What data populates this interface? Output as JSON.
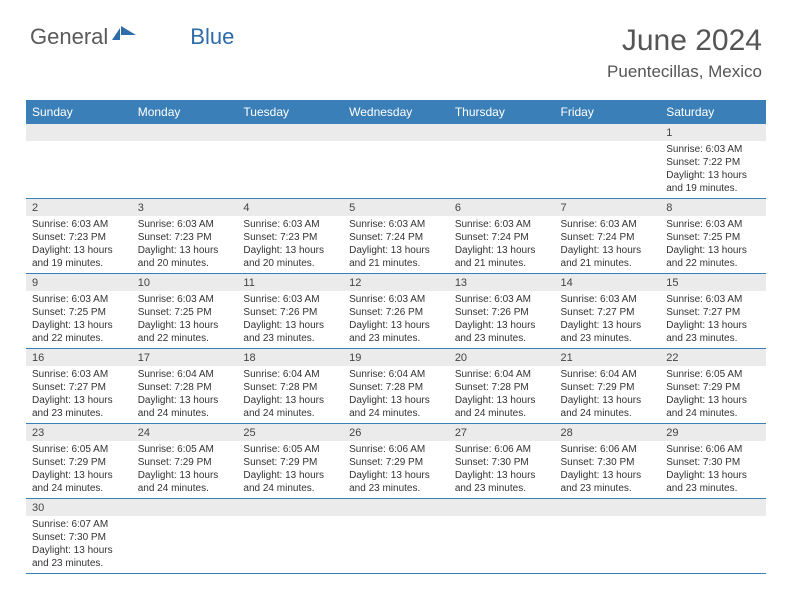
{
  "logo": {
    "part1": "General",
    "part2": "Blue"
  },
  "title": "June 2024",
  "location": "Puentecillas, Mexico",
  "colors": {
    "header_bg": "#3b7fb8",
    "header_text": "#ffffff",
    "daynum_bg": "#ebebeb",
    "border": "#3b7fb8",
    "title_color": "#555555",
    "logo_gray": "#5a5a5a",
    "logo_blue": "#2d6ca8"
  },
  "typography": {
    "title_fontsize": 30,
    "location_fontsize": 17,
    "header_fontsize": 12,
    "daynum_fontsize": 11,
    "content_fontsize": 10
  },
  "weekdays": [
    "Sunday",
    "Monday",
    "Tuesday",
    "Wednesday",
    "Thursday",
    "Friday",
    "Saturday"
  ],
  "first_weekday": 6,
  "days": [
    {
      "n": 1,
      "sunrise": "6:03 AM",
      "sunset": "7:22 PM",
      "daylight": "13 hours and 19 minutes."
    },
    {
      "n": 2,
      "sunrise": "6:03 AM",
      "sunset": "7:23 PM",
      "daylight": "13 hours and 19 minutes."
    },
    {
      "n": 3,
      "sunrise": "6:03 AM",
      "sunset": "7:23 PM",
      "daylight": "13 hours and 20 minutes."
    },
    {
      "n": 4,
      "sunrise": "6:03 AM",
      "sunset": "7:23 PM",
      "daylight": "13 hours and 20 minutes."
    },
    {
      "n": 5,
      "sunrise": "6:03 AM",
      "sunset": "7:24 PM",
      "daylight": "13 hours and 21 minutes."
    },
    {
      "n": 6,
      "sunrise": "6:03 AM",
      "sunset": "7:24 PM",
      "daylight": "13 hours and 21 minutes."
    },
    {
      "n": 7,
      "sunrise": "6:03 AM",
      "sunset": "7:24 PM",
      "daylight": "13 hours and 21 minutes."
    },
    {
      "n": 8,
      "sunrise": "6:03 AM",
      "sunset": "7:25 PM",
      "daylight": "13 hours and 22 minutes."
    },
    {
      "n": 9,
      "sunrise": "6:03 AM",
      "sunset": "7:25 PM",
      "daylight": "13 hours and 22 minutes."
    },
    {
      "n": 10,
      "sunrise": "6:03 AM",
      "sunset": "7:25 PM",
      "daylight": "13 hours and 22 minutes."
    },
    {
      "n": 11,
      "sunrise": "6:03 AM",
      "sunset": "7:26 PM",
      "daylight": "13 hours and 23 minutes."
    },
    {
      "n": 12,
      "sunrise": "6:03 AM",
      "sunset": "7:26 PM",
      "daylight": "13 hours and 23 minutes."
    },
    {
      "n": 13,
      "sunrise": "6:03 AM",
      "sunset": "7:26 PM",
      "daylight": "13 hours and 23 minutes."
    },
    {
      "n": 14,
      "sunrise": "6:03 AM",
      "sunset": "7:27 PM",
      "daylight": "13 hours and 23 minutes."
    },
    {
      "n": 15,
      "sunrise": "6:03 AM",
      "sunset": "7:27 PM",
      "daylight": "13 hours and 23 minutes."
    },
    {
      "n": 16,
      "sunrise": "6:03 AM",
      "sunset": "7:27 PM",
      "daylight": "13 hours and 23 minutes."
    },
    {
      "n": 17,
      "sunrise": "6:04 AM",
      "sunset": "7:28 PM",
      "daylight": "13 hours and 24 minutes."
    },
    {
      "n": 18,
      "sunrise": "6:04 AM",
      "sunset": "7:28 PM",
      "daylight": "13 hours and 24 minutes."
    },
    {
      "n": 19,
      "sunrise": "6:04 AM",
      "sunset": "7:28 PM",
      "daylight": "13 hours and 24 minutes."
    },
    {
      "n": 20,
      "sunrise": "6:04 AM",
      "sunset": "7:28 PM",
      "daylight": "13 hours and 24 minutes."
    },
    {
      "n": 21,
      "sunrise": "6:04 AM",
      "sunset": "7:29 PM",
      "daylight": "13 hours and 24 minutes."
    },
    {
      "n": 22,
      "sunrise": "6:05 AM",
      "sunset": "7:29 PM",
      "daylight": "13 hours and 24 minutes."
    },
    {
      "n": 23,
      "sunrise": "6:05 AM",
      "sunset": "7:29 PM",
      "daylight": "13 hours and 24 minutes."
    },
    {
      "n": 24,
      "sunrise": "6:05 AM",
      "sunset": "7:29 PM",
      "daylight": "13 hours and 24 minutes."
    },
    {
      "n": 25,
      "sunrise": "6:05 AM",
      "sunset": "7:29 PM",
      "daylight": "13 hours and 24 minutes."
    },
    {
      "n": 26,
      "sunrise": "6:06 AM",
      "sunset": "7:29 PM",
      "daylight": "13 hours and 23 minutes."
    },
    {
      "n": 27,
      "sunrise": "6:06 AM",
      "sunset": "7:30 PM",
      "daylight": "13 hours and 23 minutes."
    },
    {
      "n": 28,
      "sunrise": "6:06 AM",
      "sunset": "7:30 PM",
      "daylight": "13 hours and 23 minutes."
    },
    {
      "n": 29,
      "sunrise": "6:06 AM",
      "sunset": "7:30 PM",
      "daylight": "13 hours and 23 minutes."
    },
    {
      "n": 30,
      "sunrise": "6:07 AM",
      "sunset": "7:30 PM",
      "daylight": "13 hours and 23 minutes."
    }
  ],
  "labels": {
    "sunrise": "Sunrise:",
    "sunset": "Sunset:",
    "daylight": "Daylight:"
  }
}
